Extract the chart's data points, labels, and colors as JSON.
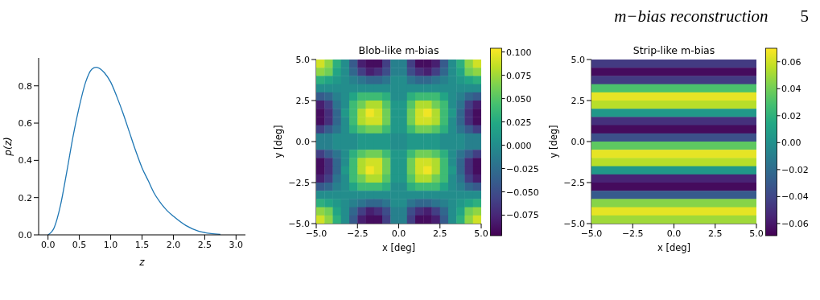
{
  "chart_data": [
    {
      "type": "line",
      "xlabel": "z",
      "ylabel": "p(z)",
      "color": "#1f77b4",
      "x": [
        0,
        0.1,
        0.2,
        0.3,
        0.4,
        0.5,
        0.6,
        0.7,
        0.77,
        0.9,
        1.0,
        1.1,
        1.2,
        1.3,
        1.4,
        1.5,
        1.6,
        1.7,
        1.8,
        1.9,
        2.0,
        2.2,
        2.4,
        2.6,
        2.75
      ],
      "values": [
        0,
        0.04,
        0.16,
        0.34,
        0.53,
        0.69,
        0.82,
        0.89,
        0.9,
        0.87,
        0.82,
        0.74,
        0.65,
        0.55,
        0.45,
        0.36,
        0.29,
        0.22,
        0.17,
        0.13,
        0.1,
        0.05,
        0.02,
        0.007,
        0.003
      ],
      "xlim": [
        -0.15,
        3.15
      ],
      "ylim": [
        0,
        0.95
      ],
      "xticks": [
        {
          "value": 0,
          "label": "0.0"
        },
        0.5,
        {
          "value": 1,
          "label": "1.0"
        },
        1.5,
        {
          "value": 2,
          "label": "2.0"
        },
        2.5,
        {
          "value": 3,
          "label": "3.0"
        }
      ],
      "yticks": [
        {
          "value": 0,
          "label": "0.0"
        },
        0.2,
        0.4,
        0.6,
        0.8
      ]
    },
    {
      "type": "heatmap",
      "title": "Blob-like m-bias",
      "xlabel": "x [deg]",
      "ylabel": "y [deg]",
      "cells": [
        [
          0.09,
          0.07,
          0.03,
          0,
          -0.04,
          -0.08,
          -0.09,
          -0.09,
          -0.06,
          -0.01,
          -0.01,
          -0.06,
          -0.09,
          -0.09,
          -0.08,
          -0.04,
          0,
          0.03,
          0.07,
          0.09
        ],
        [
          0.07,
          0.06,
          0.02,
          0,
          -0.03,
          -0.06,
          -0.08,
          -0.07,
          -0.05,
          -0.01,
          -0.01,
          -0.05,
          -0.07,
          -0.08,
          -0.06,
          -0.03,
          0,
          0.02,
          0.06,
          0.07
        ],
        [
          0.03,
          0.02,
          0.01,
          0,
          -0.01,
          -0.02,
          -0.03,
          -0.03,
          -0.02,
          0,
          0,
          -0.02,
          -0.03,
          -0.03,
          -0.02,
          -0.01,
          0,
          0.01,
          0.02,
          0.03
        ],
        [
          0,
          0,
          0,
          0,
          0,
          0,
          0,
          0,
          0,
          0,
          0,
          0,
          0,
          0,
          0,
          0,
          0,
          0,
          0,
          0
        ],
        [
          -0.04,
          -0.03,
          -0.01,
          0,
          0.02,
          0.04,
          0.04,
          0.04,
          0.03,
          0,
          0,
          0.03,
          0.04,
          0.04,
          0.04,
          0.02,
          0,
          -0.01,
          -0.03,
          -0.04
        ],
        [
          -0.08,
          -0.06,
          -0.02,
          0,
          0.04,
          0.06,
          0.08,
          0.08,
          0.05,
          0.01,
          0.01,
          0.05,
          0.08,
          0.08,
          0.06,
          0.04,
          0,
          -0.02,
          -0.06,
          -0.08
        ],
        [
          -0.09,
          -0.07,
          -0.03,
          0.01,
          0.04,
          0.08,
          0.1,
          0.09,
          0.06,
          0.01,
          0.01,
          0.06,
          0.09,
          0.1,
          0.08,
          0.04,
          0.01,
          -0.03,
          -0.07,
          -0.09
        ],
        [
          -0.09,
          -0.07,
          -0.03,
          0,
          0.04,
          0.08,
          0.09,
          0.09,
          0.06,
          0.01,
          0.01,
          0.06,
          0.09,
          0.09,
          0.08,
          0.04,
          0,
          -0.03,
          -0.07,
          -0.09
        ],
        [
          -0.06,
          -0.04,
          -0.02,
          0,
          0.03,
          0.05,
          0.06,
          0.06,
          0.04,
          0.01,
          0.01,
          0.04,
          0.06,
          0.06,
          0.05,
          0.03,
          0,
          -0.02,
          -0.04,
          -0.06
        ],
        [
          -0.01,
          -0.01,
          0,
          0,
          0,
          0.01,
          0.01,
          0.01,
          0.01,
          0,
          0,
          0.01,
          0.01,
          0.01,
          0.01,
          0,
          0,
          0,
          -0.01,
          -0.01
        ],
        [
          -0.01,
          -0.01,
          0,
          0,
          0,
          0.01,
          0.01,
          0.01,
          0.01,
          0,
          0,
          0.01,
          0.01,
          0.01,
          0.01,
          0,
          0,
          0,
          -0.01,
          -0.01
        ],
        [
          -0.06,
          -0.04,
          -0.02,
          0,
          0.03,
          0.05,
          0.06,
          0.06,
          0.04,
          0.01,
          0.01,
          0.04,
          0.06,
          0.06,
          0.05,
          0.03,
          0,
          -0.02,
          -0.04,
          -0.06
        ],
        [
          -0.09,
          -0.07,
          -0.03,
          0,
          0.04,
          0.08,
          0.09,
          0.09,
          0.06,
          0.01,
          0.01,
          0.06,
          0.09,
          0.09,
          0.08,
          0.04,
          0,
          -0.03,
          -0.07,
          -0.09
        ],
        [
          -0.09,
          -0.07,
          -0.03,
          0.01,
          0.04,
          0.08,
          0.1,
          0.09,
          0.06,
          0.01,
          0.01,
          0.06,
          0.09,
          0.1,
          0.08,
          0.04,
          0.01,
          -0.03,
          -0.07,
          -0.09
        ],
        [
          -0.08,
          -0.06,
          -0.02,
          0,
          0.04,
          0.06,
          0.08,
          0.08,
          0.05,
          0.01,
          0.01,
          0.05,
          0.08,
          0.08,
          0.06,
          0.04,
          0,
          -0.02,
          -0.06,
          -0.08
        ],
        [
          -0.04,
          -0.03,
          -0.01,
          0,
          0.02,
          0.04,
          0.04,
          0.04,
          0.03,
          0,
          0,
          0.03,
          0.04,
          0.04,
          0.04,
          0.02,
          0,
          -0.01,
          -0.03,
          -0.04
        ],
        [
          0,
          0,
          0,
          0,
          0,
          0,
          0,
          0,
          0,
          0,
          0,
          0,
          0,
          0,
          0,
          0,
          0,
          0,
          0,
          0
        ],
        [
          0.03,
          0.02,
          0.01,
          0,
          -0.01,
          -0.02,
          -0.03,
          -0.03,
          -0.02,
          0,
          0,
          -0.02,
          -0.03,
          -0.03,
          -0.02,
          -0.01,
          0,
          0.01,
          0.02,
          0.03
        ],
        [
          0.07,
          0.06,
          0.02,
          0,
          -0.03,
          -0.06,
          -0.08,
          -0.07,
          -0.05,
          -0.01,
          -0.01,
          -0.05,
          -0.07,
          -0.08,
          -0.06,
          -0.03,
          0,
          0.02,
          0.06,
          0.07
        ],
        [
          0.09,
          0.07,
          0.03,
          0,
          -0.04,
          -0.08,
          -0.09,
          -0.09,
          -0.06,
          -0.01,
          -0.01,
          -0.06,
          -0.09,
          -0.09,
          -0.08,
          -0.04,
          0,
          0.03,
          0.07,
          0.09
        ]
      ],
      "xlim": [
        -5,
        5
      ],
      "ylim": [
        -5,
        5
      ],
      "xticks": [
        {
          "value": -5,
          "label": "−5.0"
        },
        {
          "value": -2.5,
          "label": "−2.5"
        },
        {
          "value": 0,
          "label": "0.0"
        },
        {
          "value": 2.5,
          "label": "2.5"
        },
        {
          "value": 5,
          "label": "5.0"
        }
      ],
      "yticks": [
        {
          "value": -5,
          "label": "−5.0"
        },
        {
          "value": -2.5,
          "label": "−2.5"
        },
        {
          "value": 0,
          "label": "0.0"
        },
        {
          "value": 2.5,
          "label": "2.5"
        },
        {
          "value": 5,
          "label": "5.0"
        }
      ],
      "clim": [
        -0.097,
        0.104
      ],
      "cticks": [
        {
          "value": -0.075,
          "label": "−0.075"
        },
        {
          "value": -0.05,
          "label": "−0.050"
        },
        {
          "value": -0.025,
          "label": "−0.025"
        },
        {
          "value": 0,
          "label": "0.000"
        },
        0.025,
        {
          "value": 0.05,
          "label": "0.050"
        },
        0.075,
        {
          "value": 0.1,
          "label": "0.100"
        }
      ]
    },
    {
      "type": "heatmap",
      "title": "Strip-like m-bias",
      "xlabel": "x [deg]",
      "ylabel": "y [deg]",
      "annotations": [
        "m−bias reconstruction",
        "5"
      ],
      "cells": [
        [
          -0.045
        ],
        [
          -0.065
        ],
        [
          -0.045
        ],
        [
          0.03
        ],
        [
          0.065
        ],
        [
          0.055
        ],
        [
          0.005
        ],
        [
          -0.05
        ],
        [
          -0.065
        ],
        [
          -0.035
        ],
        [
          0.035
        ],
        [
          0.065
        ],
        [
          0.055
        ],
        [
          0.005
        ],
        [
          -0.055
        ],
        [
          -0.065
        ],
        [
          -0.03
        ],
        [
          0.045
        ],
        [
          0.065
        ],
        [
          0.05
        ]
      ],
      "xlim": [
        -5,
        5
      ],
      "ylim": [
        -5,
        5
      ],
      "xticks": [
        {
          "value": -5,
          "label": "−5.0"
        },
        {
          "value": -2.5,
          "label": "−2.5"
        },
        {
          "value": 0,
          "label": "0.0"
        },
        {
          "value": 2.5,
          "label": "2.5"
        },
        {
          "value": 5,
          "label": "5.0"
        }
      ],
      "yticks": [
        {
          "value": -5,
          "label": "−5.0"
        },
        {
          "value": -2.5,
          "label": "−2.5"
        },
        {
          "value": 0,
          "label": "0.0"
        },
        {
          "value": 2.5,
          "label": "2.5"
        },
        {
          "value": 5,
          "label": "5.0"
        }
      ],
      "clim": [
        -0.069,
        0.07
      ],
      "cticks": [
        {
          "value": -0.06,
          "label": "−0.06"
        },
        {
          "value": -0.04,
          "label": "−0.04"
        },
        {
          "value": -0.02,
          "label": "−0.02"
        },
        {
          "value": 0,
          "label": "0.00"
        },
        0.02,
        0.04,
        0.06
      ]
    }
  ]
}
